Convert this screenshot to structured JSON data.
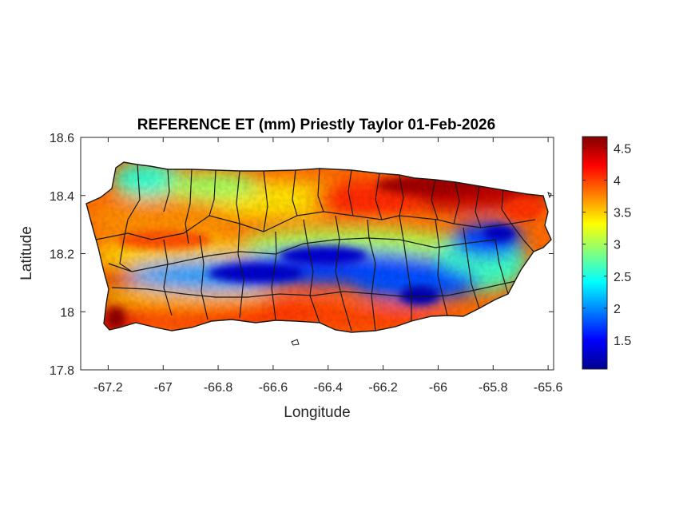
{
  "title": "REFERENCE ET (mm) Priestly Taylor 01-Feb-2026",
  "axes": {
    "xlabel": "Longitude",
    "ylabel": "Latitude",
    "xlim": [
      -67.3,
      -65.58
    ],
    "ylim": [
      17.8,
      18.6
    ],
    "xticks": [
      {
        "value": -67.2,
        "label": "-67.2"
      },
      {
        "value": -67.0,
        "label": "-67"
      },
      {
        "value": -66.8,
        "label": "-66.8"
      },
      {
        "value": -66.6,
        "label": "-66.6"
      },
      {
        "value": -66.4,
        "label": "-66.4"
      },
      {
        "value": -66.2,
        "label": "-66.2"
      },
      {
        "value": -66.0,
        "label": "-66"
      },
      {
        "value": -65.8,
        "label": "-65.8"
      },
      {
        "value": -65.6,
        "label": "-65.6"
      }
    ],
    "yticks": [
      {
        "value": 17.8,
        "label": "17.8"
      },
      {
        "value": 18.0,
        "label": "18"
      },
      {
        "value": 18.2,
        "label": "18.2"
      },
      {
        "value": 18.4,
        "label": "18.4"
      },
      {
        "value": 18.6,
        "label": "18.6"
      }
    ]
  },
  "colorbar": {
    "colormap": "jet",
    "range": [
      1.05,
      4.68
    ],
    "ticks": [
      {
        "value": 1.5,
        "label": "1.5"
      },
      {
        "value": 2.0,
        "label": "2"
      },
      {
        "value": 2.5,
        "label": "2.5"
      },
      {
        "value": 3.0,
        "label": "3"
      },
      {
        "value": 3.5,
        "label": "3.5"
      },
      {
        "value": 4.0,
        "label": "4"
      },
      {
        "value": 4.5,
        "label": "4.5"
      }
    ]
  },
  "map": {
    "region": "Puerto Rico",
    "variable": "Reference ET (mm)",
    "pattern": "Low values (blue, ~1.1-2 mm) along the central mountain range from west to east; high values (red, ~4-4.6 mm) along the northeast and southern/southwest coasts; intermediate (yellow-green) in the north-central and northwest."
  }
}
